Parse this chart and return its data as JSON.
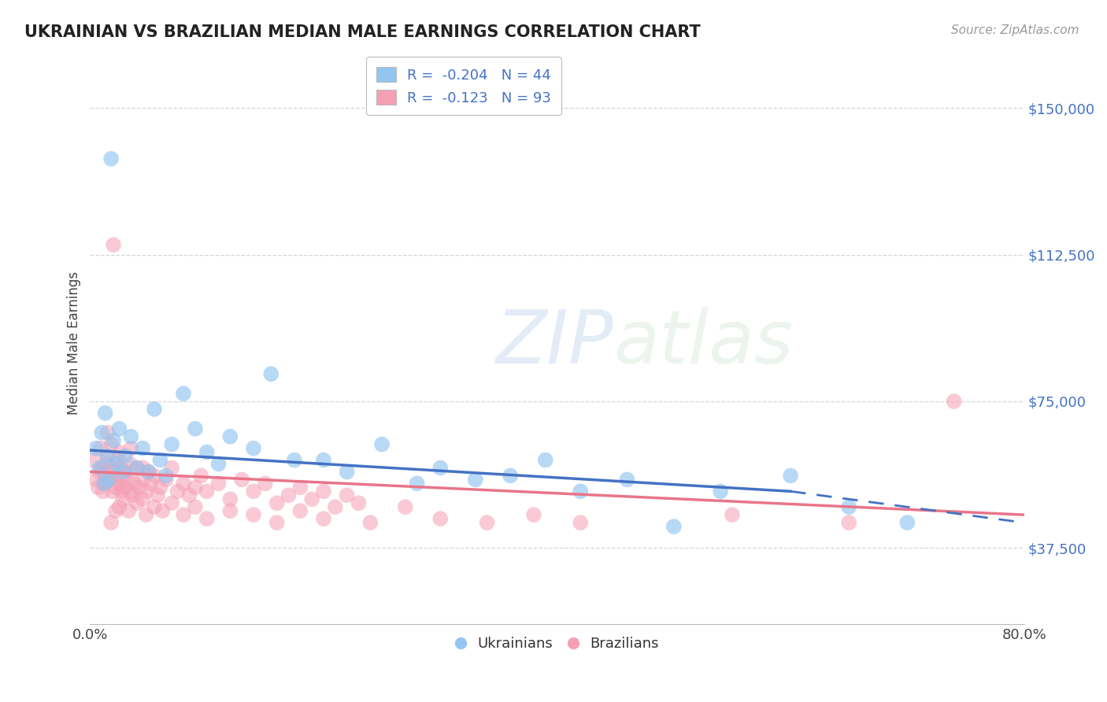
{
  "title": "UKRAINIAN VS BRAZILIAN MEDIAN MALE EARNINGS CORRELATION CHART",
  "source": "Source: ZipAtlas.com",
  "ylabel": "Median Male Earnings",
  "ua_color": "#92c5f0",
  "br_color": "#f5a0b5",
  "ua_line_color": "#4472c4",
  "br_line_color": "#e8758a",
  "grid_color": "#cccccc",
  "axis_label_color": "#4472c4",
  "xmin": 0.0,
  "xmax": 0.8,
  "ymin": 18000,
  "ymax": 162000,
  "yticks": [
    37500,
    75000,
    112500,
    150000
  ],
  "ua_R": -0.204,
  "ua_N": 44,
  "br_R": -0.123,
  "br_N": 93,
  "ua_intercept": 62000,
  "ua_slope": -25000,
  "br_intercept": 57000,
  "br_slope": -12000,
  "ua_x": [
    0.005,
    0.008,
    0.01,
    0.012,
    0.013,
    0.015,
    0.016,
    0.018,
    0.02,
    0.022,
    0.025,
    0.028,
    0.03,
    0.035,
    0.04,
    0.045,
    0.05,
    0.055,
    0.06,
    0.065,
    0.07,
    0.08,
    0.09,
    0.1,
    0.11,
    0.12,
    0.14,
    0.155,
    0.175,
    0.2,
    0.22,
    0.25,
    0.28,
    0.3,
    0.33,
    0.36,
    0.39,
    0.42,
    0.46,
    0.5,
    0.54,
    0.6,
    0.65,
    0.7
  ],
  "ua_y": [
    63000,
    58000,
    67000,
    54000,
    72000,
    61000,
    55000,
    137000,
    65000,
    59000,
    68000,
    57000,
    61000,
    66000,
    58000,
    63000,
    57000,
    73000,
    60000,
    56000,
    64000,
    77000,
    68000,
    62000,
    59000,
    66000,
    63000,
    82000,
    60000,
    60000,
    57000,
    64000,
    54000,
    58000,
    55000,
    56000,
    60000,
    52000,
    55000,
    43000,
    52000,
    56000,
    48000,
    44000
  ],
  "br_x": [
    0.003,
    0.005,
    0.007,
    0.008,
    0.009,
    0.01,
    0.011,
    0.012,
    0.013,
    0.014,
    0.015,
    0.016,
    0.017,
    0.018,
    0.019,
    0.02,
    0.021,
    0.022,
    0.023,
    0.024,
    0.025,
    0.026,
    0.027,
    0.028,
    0.029,
    0.03,
    0.032,
    0.034,
    0.036,
    0.038,
    0.04,
    0.042,
    0.045,
    0.048,
    0.05,
    0.052,
    0.055,
    0.058,
    0.06,
    0.065,
    0.07,
    0.075,
    0.08,
    0.085,
    0.09,
    0.095,
    0.1,
    0.11,
    0.12,
    0.13,
    0.14,
    0.15,
    0.16,
    0.17,
    0.18,
    0.19,
    0.2,
    0.21,
    0.22,
    0.23,
    0.025,
    0.035,
    0.045,
    0.018,
    0.022,
    0.028,
    0.033,
    0.04,
    0.048,
    0.055,
    0.062,
    0.07,
    0.08,
    0.09,
    0.1,
    0.12,
    0.14,
    0.16,
    0.18,
    0.2,
    0.24,
    0.27,
    0.3,
    0.34,
    0.38,
    0.42,
    0.015,
    0.025,
    0.035,
    0.045,
    0.55,
    0.65,
    0.74
  ],
  "br_y": [
    60000,
    55000,
    53000,
    57000,
    63000,
    58000,
    52000,
    54000,
    56000,
    59000,
    61000,
    57000,
    55000,
    64000,
    52000,
    115000,
    58000,
    53000,
    56000,
    60000,
    54000,
    58000,
    52000,
    56000,
    53000,
    57000,
    55000,
    59000,
    51000,
    54000,
    58000,
    53000,
    55000,
    52000,
    57000,
    54000,
    56000,
    51000,
    53000,
    55000,
    58000,
    52000,
    54000,
    51000,
    53000,
    56000,
    52000,
    54000,
    50000,
    55000,
    52000,
    54000,
    49000,
    51000,
    53000,
    50000,
    52000,
    48000,
    51000,
    49000,
    48000,
    52000,
    50000,
    44000,
    47000,
    50000,
    47000,
    49000,
    46000,
    48000,
    47000,
    49000,
    46000,
    48000,
    45000,
    47000,
    46000,
    44000,
    47000,
    45000,
    44000,
    48000,
    45000,
    44000,
    46000,
    44000,
    67000,
    62000,
    63000,
    58000,
    46000,
    44000,
    75000
  ]
}
